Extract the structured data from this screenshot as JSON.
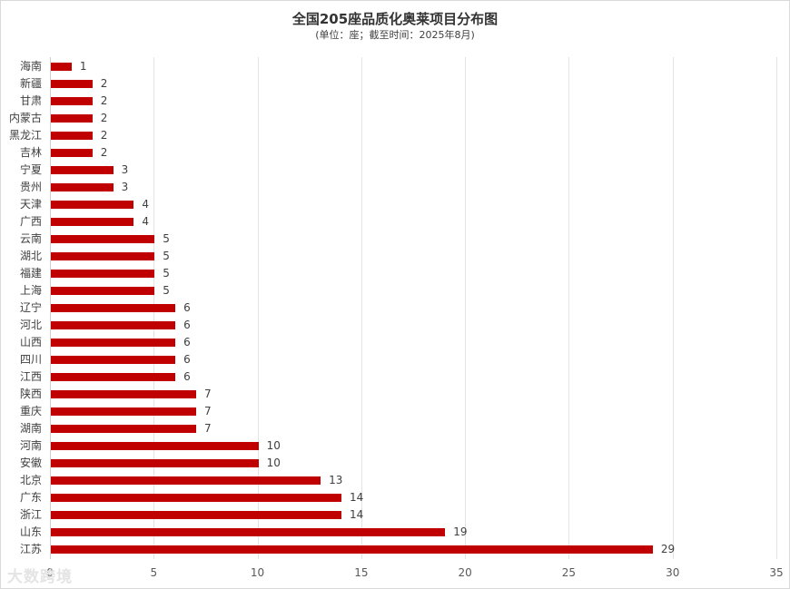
{
  "chart_data": {
    "type": "bar",
    "orientation": "horizontal",
    "title": "全国205座品质化奥莱项目分布图",
    "subtitle": "(单位：座；截至时间：2025年8月)",
    "xlabel": "",
    "ylabel": "",
    "xlim": [
      0,
      35
    ],
    "xticks": [
      0,
      5,
      10,
      15,
      20,
      25,
      30,
      35
    ],
    "grid": true,
    "legend": null,
    "bar_color": "#c00000",
    "categories": [
      "海南",
      "新疆",
      "甘肃",
      "内蒙古",
      "黑龙江",
      "吉林",
      "宁夏",
      "贵州",
      "天津",
      "广西",
      "云南",
      "湖北",
      "福建",
      "上海",
      "辽宁",
      "河北",
      "山西",
      "四川",
      "江西",
      "陕西",
      "重庆",
      "湖南",
      "河南",
      "安徽",
      "北京",
      "广东",
      "浙江",
      "山东",
      "江苏"
    ],
    "values": [
      1,
      2,
      2,
      2,
      2,
      2,
      3,
      3,
      4,
      4,
      5,
      5,
      5,
      5,
      6,
      6,
      6,
      6,
      6,
      7,
      7,
      7,
      10,
      10,
      13,
      14,
      14,
      19,
      29
    ]
  },
  "watermark": "大数跨境"
}
